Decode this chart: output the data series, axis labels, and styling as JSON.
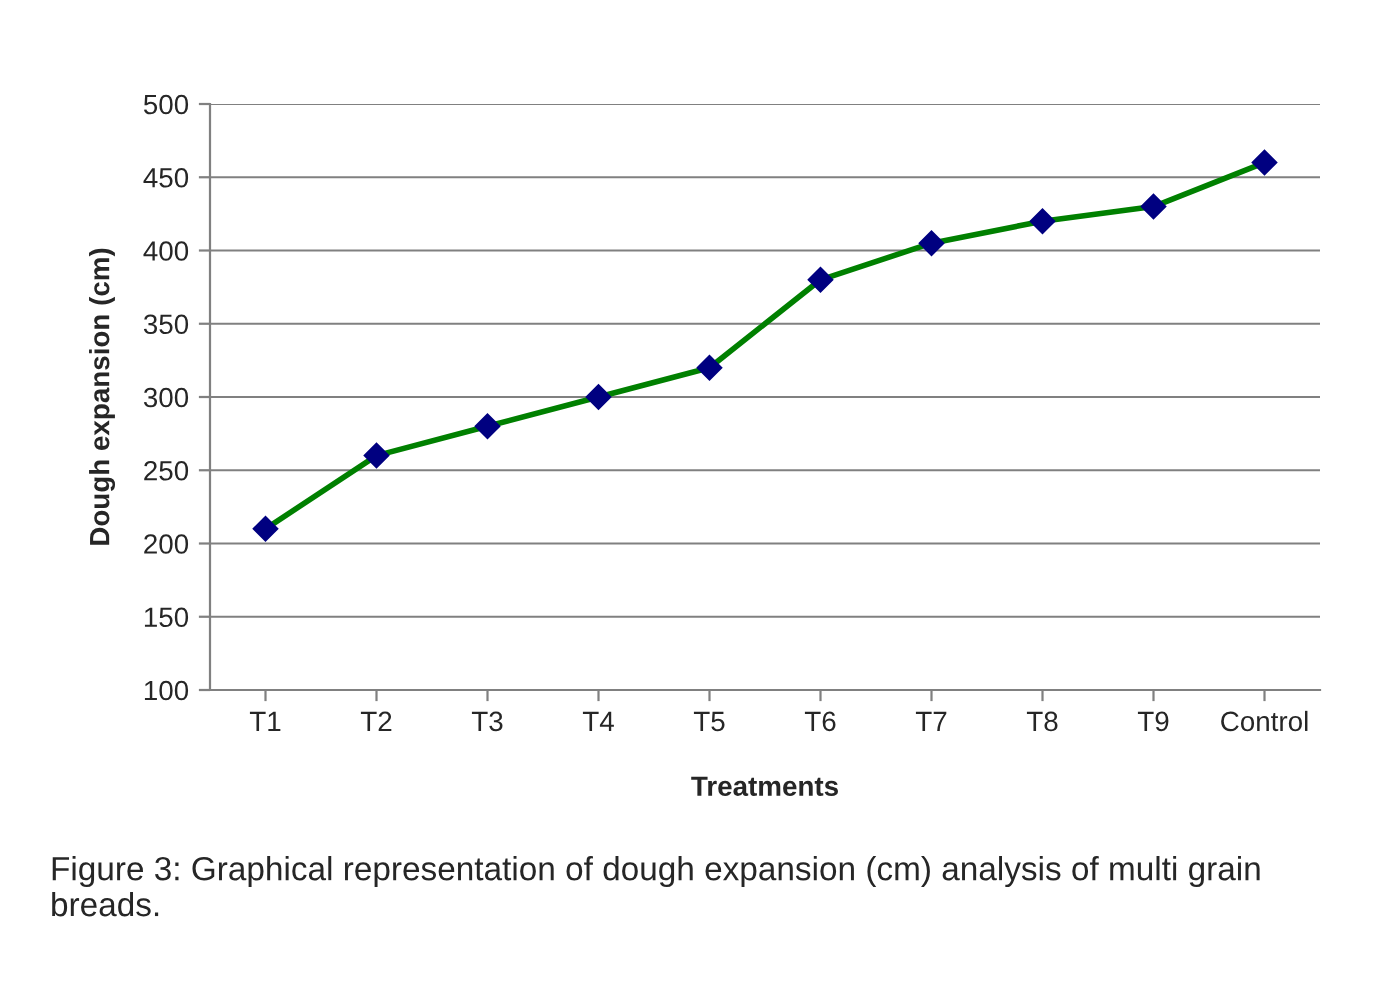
{
  "chart_data": {
    "type": "line",
    "xlabel": "Treatments",
    "ylabel": "Dough expansion (cm)",
    "categories": [
      "T1",
      "T2",
      "T3",
      "T4",
      "T5",
      "T6",
      "T7",
      "T8",
      "T9",
      "Control"
    ],
    "series": [
      {
        "color": "#008000",
        "values": [
          210,
          260,
          280,
          300,
          320,
          380,
          405,
          420,
          430,
          460
        ]
      }
    ],
    "ylim": [
      100,
      500
    ],
    "yticks": [
      100,
      150,
      200,
      250,
      300,
      350,
      400,
      450,
      500
    ],
    "grid": "y",
    "marker": "diamond",
    "line_style": "solid",
    "legend": false,
    "annotations": [
      "Figure 3: Graphical representation of dough expansion (cm) analysis of multi grain breads."
    ]
  }
}
